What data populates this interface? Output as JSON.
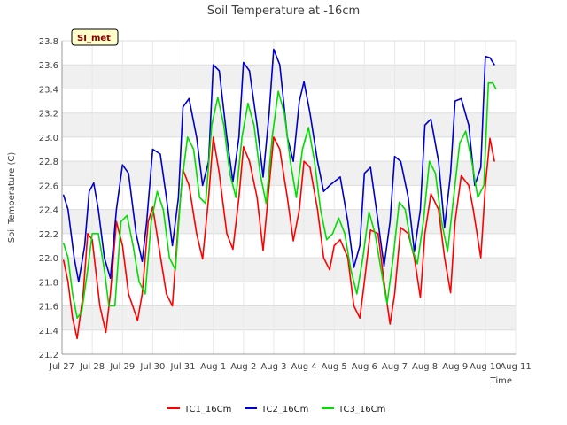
{
  "chart_data": {
    "type": "line",
    "title": "Soil Temperature at -16cm",
    "xlabel": "Time",
    "ylabel": "Soil Temperature (C)",
    "badge": "SI_met",
    "xlim": [
      0,
      15
    ],
    "ylim": [
      21.2,
      23.8
    ],
    "y_ticks": [
      "21.2",
      "21.4",
      "21.6",
      "21.8",
      "22.0",
      "22.2",
      "22.4",
      "22.6",
      "22.8",
      "23.0",
      "23.2",
      "23.4",
      "23.6",
      "23.8"
    ],
    "x_ticks": [
      "Jul 27",
      "Jul 28",
      "Jul 29",
      "Jul 30",
      "Jul 31",
      "Aug 1",
      "Aug 2",
      "Aug 3",
      "Aug 4",
      "Aug 5",
      "Aug 6",
      "Aug 7",
      "Aug 8",
      "Aug 9",
      "Aug 10",
      "Aug 11"
    ],
    "grid": "horizontal bands",
    "legend_position": "bottom",
    "series": [
      {
        "name": "TC1_16Cm",
        "color": "#ff0000",
        "x": [
          0.05,
          0.2,
          0.35,
          0.5,
          0.7,
          0.85,
          1.0,
          1.25,
          1.45,
          1.6,
          1.8,
          2.0,
          2.2,
          2.5,
          2.65,
          2.85,
          3.0,
          3.2,
          3.45,
          3.65,
          3.85,
          4.0,
          4.2,
          4.45,
          4.65,
          4.85,
          5.0,
          5.2,
          5.45,
          5.65,
          5.85,
          6.0,
          6.2,
          6.45,
          6.65,
          6.85,
          7.0,
          7.2,
          7.45,
          7.65,
          7.85,
          8.0,
          8.2,
          8.45,
          8.65,
          8.85,
          9.0,
          9.2,
          9.45,
          9.65,
          9.85,
          10.0,
          10.2,
          10.45,
          10.65,
          10.85,
          11.0,
          11.2,
          11.45,
          11.65,
          11.85,
          12.0,
          12.2,
          12.45,
          12.65,
          12.85,
          13.0,
          13.2,
          13.45,
          13.6,
          13.85,
          14.0,
          14.15
        ],
        "values": [
          21.98,
          21.8,
          21.5,
          21.33,
          21.7,
          22.2,
          22.15,
          21.6,
          21.38,
          21.7,
          22.3,
          22.1,
          21.7,
          21.48,
          21.7,
          22.3,
          22.42,
          22.1,
          21.7,
          21.6,
          22.3,
          22.73,
          22.6,
          22.2,
          21.99,
          22.5,
          23.0,
          22.7,
          22.2,
          22.07,
          22.5,
          22.92,
          22.8,
          22.5,
          22.06,
          22.6,
          23.0,
          22.9,
          22.5,
          22.14,
          22.4,
          22.8,
          22.75,
          22.4,
          22.0,
          21.9,
          22.1,
          22.15,
          22.0,
          21.6,
          21.5,
          21.8,
          22.23,
          22.2,
          21.8,
          21.45,
          21.7,
          22.25,
          22.2,
          22.0,
          21.67,
          22.2,
          22.53,
          22.4,
          22.0,
          21.71,
          22.3,
          22.68,
          22.6,
          22.4,
          22.0,
          22.6,
          22.99
        ],
        "x_end": [
          14.3
        ],
        "values_end": [
          22.8
        ]
      },
      {
        "name": "TC2_16Cm",
        "color": "#0000cc",
        "x": [
          0.05,
          0.2,
          0.4,
          0.55,
          0.75,
          0.9,
          1.05,
          1.2,
          1.4,
          1.6,
          1.8,
          2.0,
          2.2,
          2.45,
          2.65,
          2.8,
          3.0,
          3.25,
          3.45,
          3.65,
          3.85,
          4.0,
          4.2,
          4.45,
          4.65,
          4.85,
          5.0,
          5.2,
          5.45,
          5.65,
          5.85,
          6.0,
          6.2,
          6.45,
          6.65,
          6.85,
          7.0,
          7.2,
          7.45,
          7.65,
          7.85,
          8.0,
          8.2,
          8.45,
          8.65,
          8.85,
          9.0,
          9.2,
          9.45,
          9.65,
          9.85,
          10.0,
          10.2,
          10.45,
          10.65,
          10.85,
          11.0,
          11.2,
          11.45,
          11.65,
          11.85,
          12.0,
          12.2,
          12.45,
          12.65,
          12.85,
          13.0,
          13.2,
          13.45,
          13.65,
          13.85,
          14.0,
          14.15,
          14.3
        ],
        "values": [
          22.52,
          22.4,
          22.0,
          21.8,
          22.1,
          22.55,
          22.62,
          22.4,
          22.0,
          21.83,
          22.4,
          22.77,
          22.7,
          22.2,
          21.97,
          22.3,
          22.9,
          22.86,
          22.5,
          22.1,
          22.5,
          23.25,
          23.32,
          23.0,
          22.6,
          22.8,
          23.6,
          23.55,
          23.0,
          22.63,
          23.0,
          23.62,
          23.55,
          23.1,
          22.67,
          23.2,
          23.73,
          23.6,
          23.0,
          22.8,
          23.3,
          23.46,
          23.2,
          22.8,
          22.55,
          22.6,
          22.63,
          22.67,
          22.3,
          21.92,
          22.1,
          22.7,
          22.75,
          22.3,
          21.93,
          22.3,
          22.84,
          22.8,
          22.5,
          22.05,
          22.4,
          23.1,
          23.15,
          22.8,
          22.25,
          22.7,
          23.3,
          23.32,
          23.1,
          22.6,
          22.75,
          23.67,
          23.66,
          23.6
        ]
      },
      {
        "name": "TC3_16Cm",
        "color": "#00dd00",
        "x": [
          0.05,
          0.2,
          0.35,
          0.5,
          0.65,
          0.85,
          1.0,
          1.2,
          1.4,
          1.55,
          1.75,
          1.95,
          2.15,
          2.35,
          2.55,
          2.75,
          2.95,
          3.15,
          3.35,
          3.55,
          3.75,
          3.95,
          4.15,
          4.35,
          4.55,
          4.75,
          4.95,
          5.15,
          5.35,
          5.55,
          5.75,
          5.95,
          6.15,
          6.35,
          6.55,
          6.75,
          6.95,
          7.15,
          7.35,
          7.55,
          7.75,
          7.95,
          8.15,
          8.35,
          8.55,
          8.75,
          8.95,
          9.15,
          9.35,
          9.55,
          9.75,
          9.95,
          10.15,
          10.35,
          10.55,
          10.75,
          10.95,
          11.15,
          11.35,
          11.55,
          11.75,
          11.95,
          12.15,
          12.35,
          12.55,
          12.75,
          12.95,
          13.15,
          13.35,
          13.55,
          13.75,
          13.95,
          14.1,
          14.25,
          14.35
        ],
        "values": [
          22.12,
          22.0,
          21.7,
          21.5,
          21.55,
          21.9,
          22.2,
          22.2,
          21.9,
          21.6,
          21.6,
          22.3,
          22.35,
          22.1,
          21.8,
          21.7,
          22.3,
          22.55,
          22.4,
          22.0,
          21.9,
          22.6,
          23.0,
          22.9,
          22.5,
          22.45,
          23.1,
          23.33,
          23.1,
          22.7,
          22.5,
          23.0,
          23.28,
          23.1,
          22.7,
          22.45,
          23.0,
          23.38,
          23.2,
          22.8,
          22.5,
          22.9,
          23.08,
          22.8,
          22.4,
          22.15,
          22.2,
          22.33,
          22.2,
          21.9,
          21.7,
          22.0,
          22.38,
          22.2,
          21.9,
          21.62,
          22.0,
          22.46,
          22.4,
          22.1,
          21.95,
          22.3,
          22.8,
          22.7,
          22.3,
          22.05,
          22.5,
          22.95,
          23.05,
          22.8,
          22.5,
          22.6,
          23.45,
          23.45,
          23.4
        ]
      }
    ]
  }
}
